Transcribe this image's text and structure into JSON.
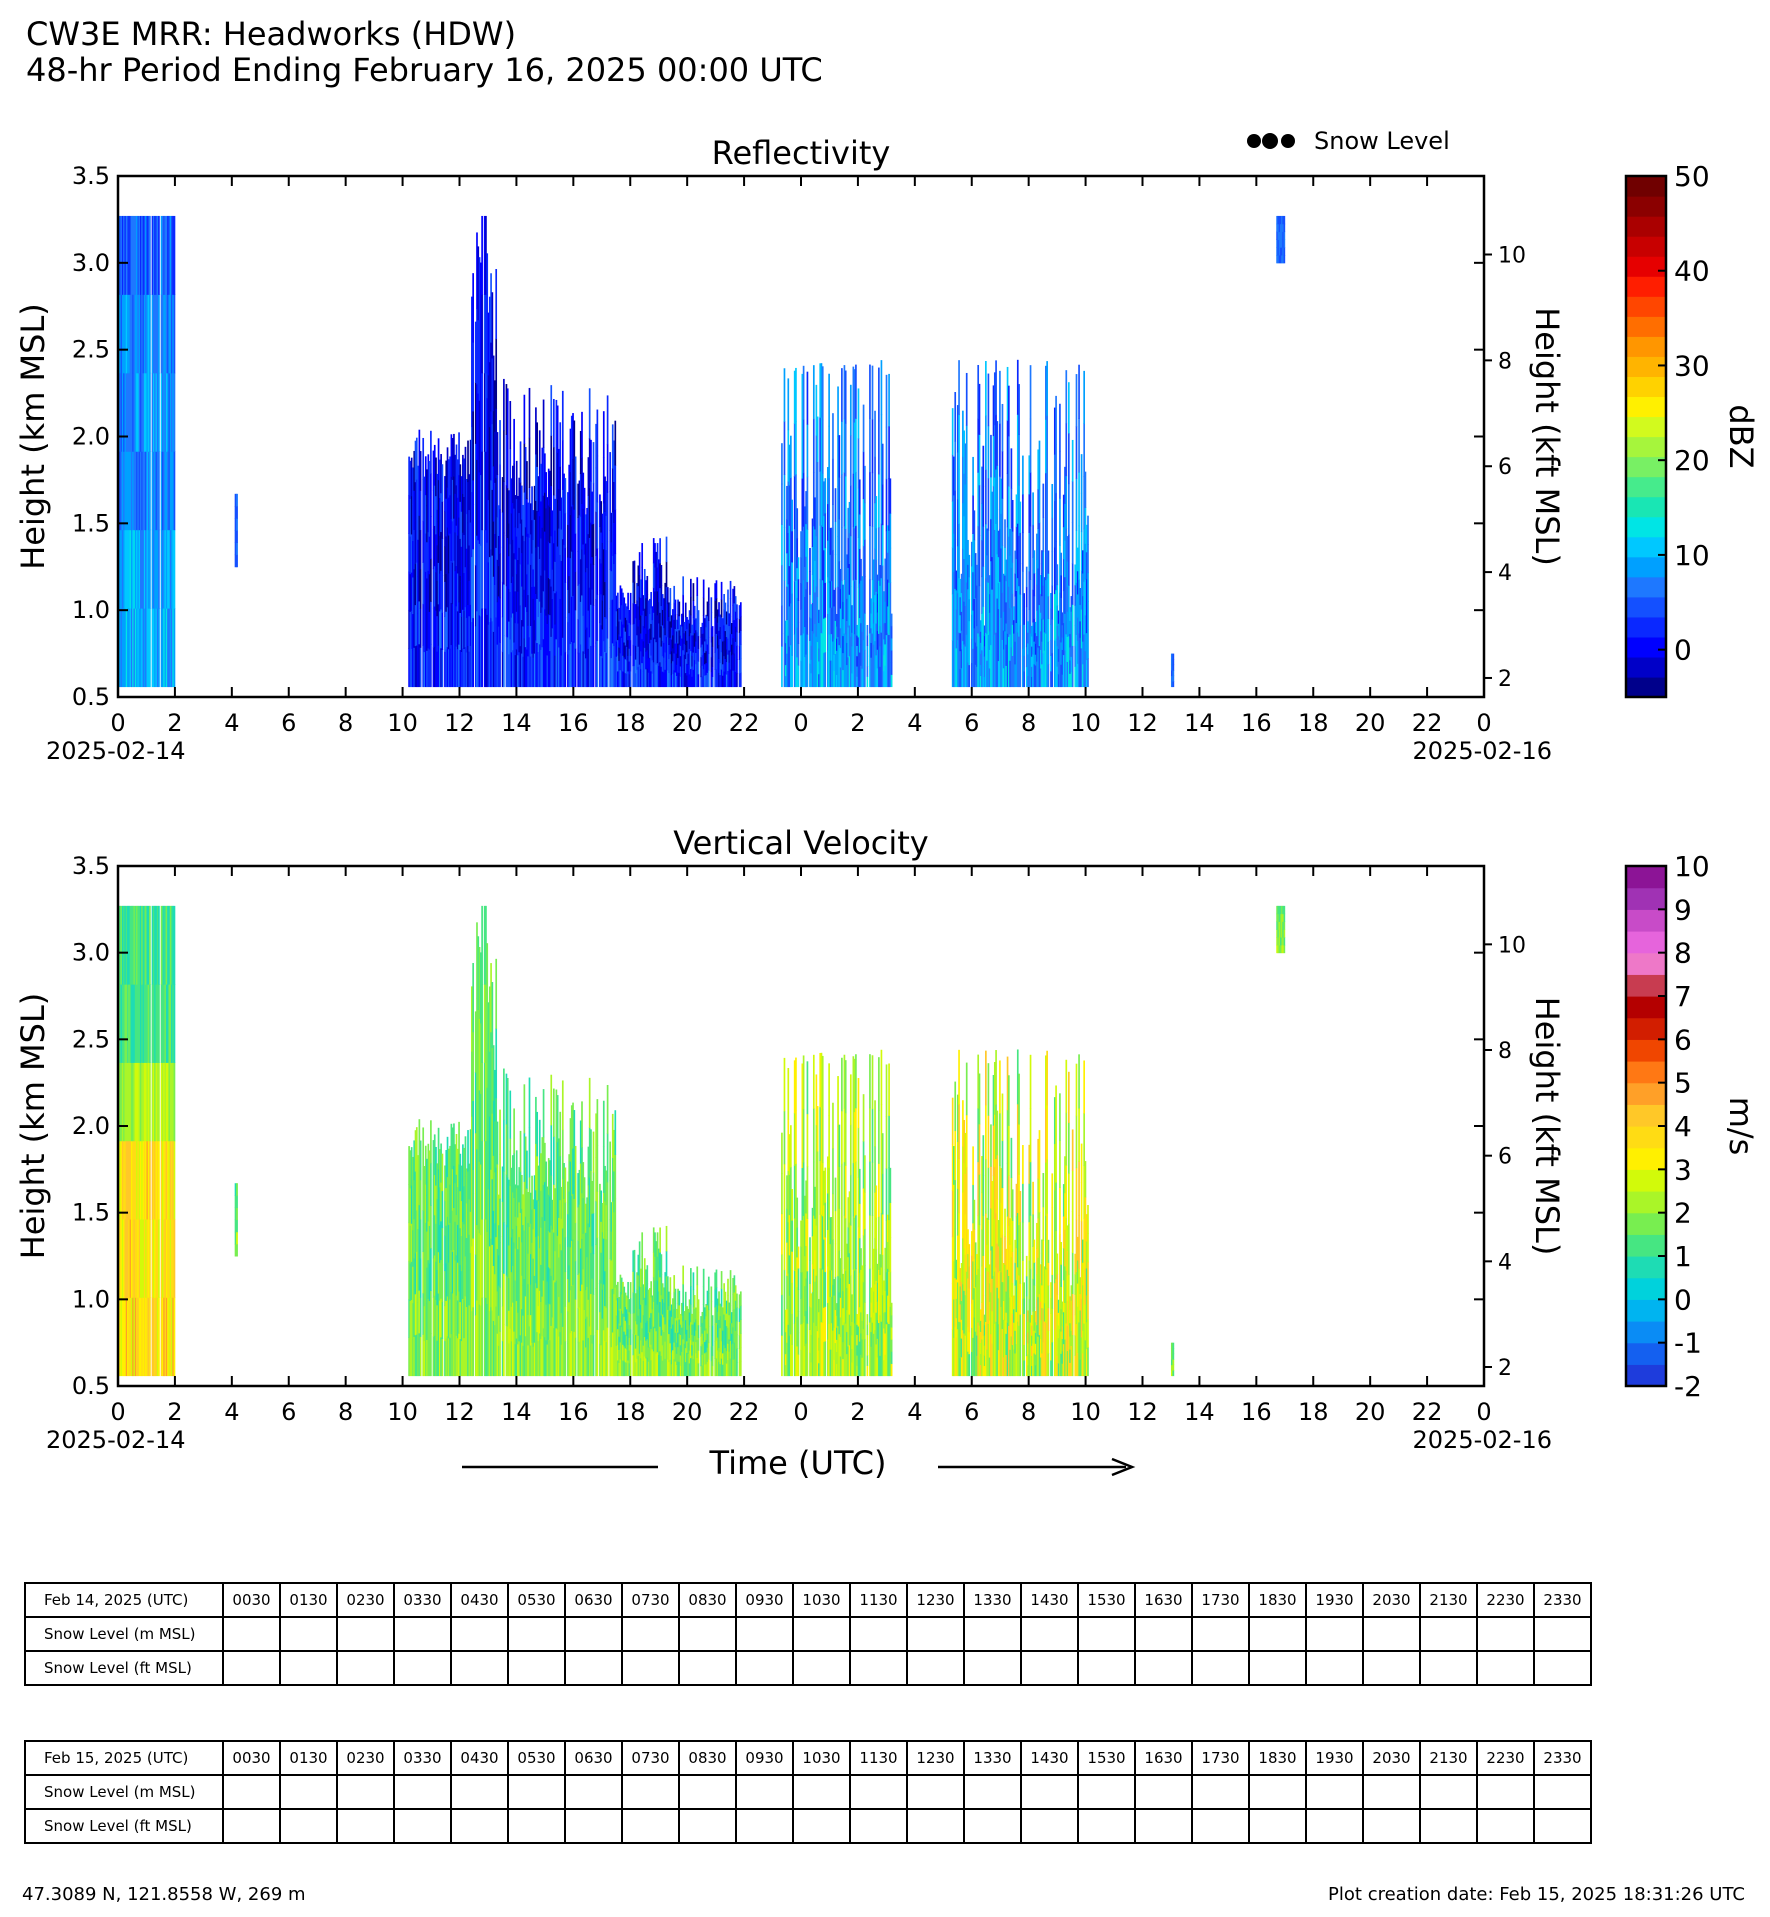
{
  "header": {
    "title_line1": "CW3E MRR: Headworks (HDW)",
    "title_line2": "48-hr Period Ending February 16, 2025 00:00 UTC"
  },
  "legend": {
    "snow_level_label": "Snow Level"
  },
  "chart_data": [
    {
      "type": "heatmap",
      "title": "Reflectivity",
      "ylabel": "Height (km MSL)",
      "ylabel_right": "Height (kft MSL)",
      "xlabel": "Time (UTC)",
      "xlim_hours": [
        0,
        48
      ],
      "ylim": [
        0.5,
        3.5
      ],
      "y_ticks": [
        "0.5",
        "1.0",
        "1.5",
        "2.0",
        "2.5",
        "3.0",
        "3.5"
      ],
      "y_right_ticks": [
        "2",
        "4",
        "6",
        "8",
        "10"
      ],
      "x_ticks": [
        "0",
        "2",
        "4",
        "6",
        "8",
        "10",
        "12",
        "14",
        "16",
        "18",
        "20",
        "22",
        "0",
        "2",
        "4",
        "6",
        "8",
        "10",
        "12",
        "14",
        "16",
        "18",
        "20",
        "22",
        "0"
      ],
      "date_start": "2025-02-14",
      "date_end": "2025-02-16",
      "colorbar": {
        "label": "dBZ",
        "min": -5,
        "max": 50,
        "ticks": [
          "0",
          "10",
          "20",
          "30",
          "40",
          "50"
        ],
        "colors": [
          "#00008b",
          "#0000c8",
          "#0000ff",
          "#0a28ff",
          "#1450ff",
          "#1e78ff",
          "#00a0ff",
          "#00c8ff",
          "#00e5e5",
          "#19e6b4",
          "#46eb8c",
          "#78f064",
          "#a6f53c",
          "#d2fa1e",
          "#fff000",
          "#ffd200",
          "#ffb400",
          "#ff9600",
          "#ff6e00",
          "#ff4600",
          "#ff1e00",
          "#e60000",
          "#c80000",
          "#aa0000",
          "#8b0000",
          "#700000"
        ]
      },
      "echo_periods": [
        {
          "start": 0.0,
          "end": 2.0,
          "top_km": 3.27,
          "intensity": "weak-moderate"
        },
        {
          "start": 4.1,
          "end": 4.2,
          "top_km": 1.67,
          "intensity": "weak"
        },
        {
          "start": 10.2,
          "end": 21.9,
          "top_km": 3.27,
          "intensity": "weak-moderate"
        },
        {
          "start": 23.3,
          "end": 27.2,
          "top_km": 2.45,
          "intensity": "moderate"
        },
        {
          "start": 29.3,
          "end": 34.1,
          "top_km": 2.45,
          "intensity": "moderate"
        },
        {
          "start": 37.0,
          "end": 37.1,
          "top_km": 0.75,
          "intensity": "weak"
        },
        {
          "start": 40.7,
          "end": 41.0,
          "top_km": 3.27,
          "intensity": "weak"
        }
      ]
    },
    {
      "type": "heatmap",
      "title": "Vertical Velocity",
      "ylabel": "Height (km MSL)",
      "ylabel_right": "Height (kft MSL)",
      "xlabel": "Time (UTC)",
      "xlim_hours": [
        0,
        48
      ],
      "ylim": [
        0.5,
        3.5
      ],
      "y_ticks": [
        "0.5",
        "1.0",
        "1.5",
        "2.0",
        "2.5",
        "3.0",
        "3.5"
      ],
      "y_right_ticks": [
        "2",
        "4",
        "6",
        "8",
        "10"
      ],
      "x_ticks": [
        "0",
        "2",
        "4",
        "6",
        "8",
        "10",
        "12",
        "14",
        "16",
        "18",
        "20",
        "22",
        "0",
        "2",
        "4",
        "6",
        "8",
        "10",
        "12",
        "14",
        "16",
        "18",
        "20",
        "22",
        "0"
      ],
      "date_start": "2025-02-14",
      "date_end": "2025-02-16",
      "colorbar": {
        "label": "m/s",
        "min": -2,
        "max": 10,
        "ticks": [
          "-2",
          "-1",
          "0",
          "1",
          "2",
          "3",
          "4",
          "5",
          "6",
          "7",
          "8",
          "9",
          "10"
        ],
        "colors": [
          "#1e3cdc",
          "#1460f0",
          "#0a8cf5",
          "#00b4f0",
          "#00d2dc",
          "#1edcb4",
          "#46e682",
          "#78ee50",
          "#aaf528",
          "#d2fa0a",
          "#fff000",
          "#ffdc14",
          "#ffc828",
          "#ffa028",
          "#ff7814",
          "#f04600",
          "#d21e00",
          "#b40000",
          "#c83c50",
          "#ee78c8",
          "#e664dc",
          "#c84bc8",
          "#a032b4",
          "#8c1496"
        ]
      },
      "echo_periods": [
        {
          "start": 0.0,
          "end": 2.0,
          "top_km": 3.27,
          "intensity": "0-3 m/s"
        },
        {
          "start": 4.1,
          "end": 4.2,
          "top_km": 1.67,
          "intensity": "~2 m/s"
        },
        {
          "start": 10.2,
          "end": 21.9,
          "top_km": 3.27,
          "intensity": "0-2 m/s"
        },
        {
          "start": 23.3,
          "end": 27.2,
          "top_km": 2.45,
          "intensity": "1-3 m/s"
        },
        {
          "start": 29.3,
          "end": 34.1,
          "top_km": 2.45,
          "intensity": "1-4 m/s"
        },
        {
          "start": 37.0,
          "end": 37.1,
          "top_km": 0.75,
          "intensity": "~1 m/s"
        },
        {
          "start": 40.7,
          "end": 41.0,
          "top_km": 3.27,
          "intensity": "~1 m/s"
        }
      ]
    }
  ],
  "tables": [
    {
      "date_label": "Feb 14, 2025 (UTC)",
      "times": [
        "0030",
        "0130",
        "0230",
        "0330",
        "0430",
        "0530",
        "0630",
        "0730",
        "0830",
        "0930",
        "1030",
        "1130",
        "1230",
        "1330",
        "1430",
        "1530",
        "1630",
        "1730",
        "1830",
        "1930",
        "2030",
        "2130",
        "2230",
        "2330"
      ],
      "row_m": "Snow Level (m MSL)",
      "row_ft": "Snow Level (ft MSL)"
    },
    {
      "date_label": "Feb 15, 2025 (UTC)",
      "times": [
        "0030",
        "0130",
        "0230",
        "0330",
        "0430",
        "0530",
        "0630",
        "0730",
        "0830",
        "0930",
        "1030",
        "1130",
        "1230",
        "1330",
        "1430",
        "1530",
        "1630",
        "1730",
        "1830",
        "1930",
        "2030",
        "2130",
        "2230",
        "2330"
      ],
      "row_m": "Snow Level (m MSL)",
      "row_ft": "Snow Level (ft MSL)"
    }
  ],
  "footer": {
    "location": "47.3089 N, 121.8558 W, 269 m",
    "creation": "Plot creation date: Feb 15, 2025 18:31:26 UTC"
  }
}
